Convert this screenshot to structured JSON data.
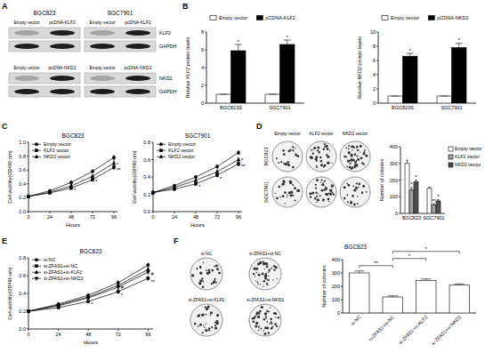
{
  "chart_data": [
    {
      "type": "bar",
      "y_label": "Relative KLF2 protein levels",
      "categories": [
        "BGC823S",
        "SGC7901"
      ],
      "series": [
        {
          "name": "Empty vector",
          "color": "#ffffff",
          "values": [
            1,
            1
          ],
          "errors": [
            0,
            0
          ]
        },
        {
          "name": "pCDNA-KLF2",
          "color": "#000000",
          "values": [
            5.9,
            6.6
          ],
          "errors": [
            0.7,
            0.5
          ]
        }
      ],
      "ylim": [
        0,
        8
      ],
      "yticks": [
        0,
        2,
        4,
        6,
        8
      ],
      "legend": "top",
      "annotations": [
        {
          "text": "*",
          "category": "BGC823S",
          "series": "pCDNA-KLF2"
        },
        {
          "text": "*",
          "category": "SGC7901",
          "series": "pCDNA-KLF2"
        }
      ]
    },
    {
      "type": "bar",
      "y_label": "Relative NKD2 protein levels",
      "categories": [
        "BGC823S",
        "SGC7901"
      ],
      "series": [
        {
          "name": "Empty vector",
          "color": "#ffffff",
          "values": [
            1,
            1
          ],
          "errors": [
            0,
            0
          ]
        },
        {
          "name": "pCDNA-NKD2",
          "color": "#000000",
          "values": [
            6.6,
            7.8
          ],
          "errors": [
            0.4,
            0.6
          ]
        }
      ],
      "ylim": [
        0,
        10
      ],
      "yticks": [
        0,
        2,
        4,
        6,
        8,
        10
      ],
      "legend": "top",
      "annotations": [
        {
          "text": "*",
          "category": "BGC823S",
          "series": "pCDNA-NKD2"
        },
        {
          "text": "*",
          "category": "SGC7901",
          "series": "pCDNA-NKD2"
        }
      ]
    },
    {
      "type": "line",
      "title": "BGC823",
      "x_label": "Hours",
      "y_label": "Cell viability(OD490 nm)",
      "x": [
        0,
        24,
        48,
        72,
        96
      ],
      "xlim": [
        0,
        100
      ],
      "xticks": [
        0,
        24,
        48,
        72,
        96
      ],
      "ylim": [
        0,
        1
      ],
      "yticks": [
        {
          "value": 0,
          "label": "0.0"
        },
        0.2,
        0.4,
        0.6,
        0.8,
        {
          "value": 1,
          "label": "1.0"
        }
      ],
      "legend": "top-left",
      "series": [
        {
          "name": "Empty vector",
          "color": "#000000",
          "marker": "circle",
          "values": [
            0.22,
            0.3,
            0.42,
            0.58,
            0.78
          ],
          "errors": [
            0.01,
            0.015,
            0.02,
            0.02,
            0.03
          ]
        },
        {
          "name": "KLF2 vector",
          "color": "#000000",
          "marker": "square",
          "values": [
            0.22,
            0.27,
            0.34,
            0.46,
            0.64
          ],
          "errors": [
            0.01,
            0.01,
            0.02,
            0.02,
            0.03
          ]
        },
        {
          "name": "NKD2 vector",
          "color": "#000000",
          "marker": "triangle",
          "values": [
            0.22,
            0.28,
            0.37,
            0.51,
            0.7
          ],
          "errors": [
            0.01,
            0.01,
            0.02,
            0.02,
            0.03
          ]
        }
      ],
      "annotations": [
        {
          "text": "*",
          "x": 48,
          "y": 0.31
        },
        {
          "text": "*",
          "x": 72,
          "y": 0.43
        },
        {
          "text": "**",
          "x": 96,
          "y": 0.6
        },
        {
          "text": "*",
          "x": 96,
          "y": 0.68
        }
      ]
    },
    {
      "type": "line",
      "title": "SGC7901",
      "x_label": "Hours",
      "y_label": "Cell viability(OD490 nm)",
      "x": [
        0,
        24,
        48,
        72,
        96
      ],
      "xlim": [
        0,
        100
      ],
      "xticks": [
        0,
        24,
        48,
        72,
        96
      ],
      "ylim": [
        0,
        0.8
      ],
      "yticks": [
        {
          "value": 0,
          "label": "0.0"
        },
        0.2,
        0.4,
        0.6,
        0.8
      ],
      "legend": "top-left",
      "series": [
        {
          "name": "Empty vector",
          "color": "#000000",
          "marker": "circle",
          "values": [
            0.22,
            0.3,
            0.4,
            0.52,
            0.68
          ],
          "errors": [
            0.01,
            0.01,
            0.015,
            0.02,
            0.02
          ]
        },
        {
          "name": "KLF2 vector",
          "color": "#000000",
          "marker": "square",
          "values": [
            0.22,
            0.26,
            0.32,
            0.42,
            0.55
          ],
          "errors": [
            0.01,
            0.01,
            0.015,
            0.02,
            0.02
          ]
        },
        {
          "name": "NKD2 vector",
          "color": "#000000",
          "marker": "triangle",
          "values": [
            0.22,
            0.28,
            0.36,
            0.46,
            0.6
          ],
          "errors": [
            0.01,
            0.01,
            0.015,
            0.02,
            0.02
          ]
        }
      ],
      "annotations": [
        {
          "text": "*",
          "x": 48,
          "y": 0.29
        },
        {
          "text": "*",
          "x": 72,
          "y": 0.38
        },
        {
          "text": "**",
          "x": 96,
          "y": 0.52
        },
        {
          "text": "*",
          "x": 96,
          "y": 0.6
        }
      ]
    },
    {
      "type": "bar",
      "y_label": "Number of colonies",
      "categories": [
        "BGC823",
        "SGC7901"
      ],
      "series": [
        {
          "name": "Empty vector",
          "color": "#ffffff",
          "values": [
            300,
            150
          ],
          "errors": [
            20,
            8
          ]
        },
        {
          "name": "KLF2 vector",
          "color": "#a0a0a0",
          "values": [
            140,
            50
          ],
          "errors": [
            15,
            8
          ]
        },
        {
          "name": "NKD2 vector",
          "color": "#505050",
          "values": [
            190,
            75
          ],
          "errors": [
            10,
            8
          ]
        }
      ],
      "ylim": [
        0,
        400
      ],
      "yticks": [
        0,
        100,
        200,
        300,
        400
      ],
      "legend": "right",
      "annotations": [
        {
          "text": "*",
          "category": "BGC823",
          "series": "KLF2 vector"
        },
        {
          "text": "*",
          "category": "BGC823",
          "series": "NKD2 vector"
        },
        {
          "text": "**",
          "category": "SGC7901",
          "series": "KLF2 vector"
        },
        {
          "text": "*",
          "category": "SGC7901",
          "series": "NKD2 vector"
        }
      ]
    },
    {
      "type": "line",
      "title": "BGC823",
      "x_label": "Hours",
      "y_label": "Cell viability(OD490 nm)",
      "x": [
        0,
        24,
        48,
        72,
        96
      ],
      "xlim": [
        0,
        100
      ],
      "xticks": [
        0,
        24,
        48,
        72,
        96
      ],
      "ylim": [
        0,
        0.8
      ],
      "yticks": [
        {
          "value": 0,
          "label": "0.0"
        },
        0.2,
        0.4,
        0.6,
        0.8
      ],
      "legend": "top-left",
      "series": [
        {
          "name": "si-NC",
          "color": "#000000",
          "marker": "circle",
          "values": [
            0.2,
            0.28,
            0.38,
            0.52,
            0.72
          ],
          "errors": [
            0.01,
            0.01,
            0.015,
            0.02,
            0.02
          ]
        },
        {
          "name": "si-ZFAS1+si-NC",
          "color": "#000000",
          "marker": "square",
          "values": [
            0.2,
            0.24,
            0.31,
            0.42,
            0.57
          ],
          "errors": [
            0.01,
            0.01,
            0.015,
            0.02,
            0.02
          ]
        },
        {
          "name": "si-ZFAS1+si-KLF2",
          "color": "#000000",
          "marker": "triangle",
          "values": [
            0.2,
            0.27,
            0.36,
            0.49,
            0.67
          ],
          "errors": [
            0.01,
            0.01,
            0.015,
            0.02,
            0.02
          ]
        },
        {
          "name": "si-ZFAS1+si-NKD2",
          "color": "#000000",
          "marker": "triangle-down",
          "values": [
            0.2,
            0.26,
            0.35,
            0.47,
            0.64
          ],
          "errors": [
            0.01,
            0.01,
            0.015,
            0.02,
            0.02
          ]
        }
      ],
      "annotations": [
        {
          "text": "*",
          "x": 48,
          "y": 0.28
        },
        {
          "text": "*",
          "x": 72,
          "y": 0.38
        },
        {
          "text": "#",
          "x": 72,
          "y": 0.47
        },
        {
          "text": "**",
          "x": 96,
          "y": 0.53
        },
        {
          "text": "#",
          "x": 96,
          "y": 0.62
        }
      ]
    },
    {
      "type": "bar",
      "title": "BGC823",
      "y_label": "Number of colonies",
      "categories": [
        "si-NC",
        "si-ZFAS1+si-NC",
        "si-ZFAS1+si-KLF2",
        "si-ZFAS1+si-NKD2"
      ],
      "series": [
        {
          "color": "#ffffff",
          "values": [
            300,
            120,
            245,
            210
          ],
          "errors": [
            15,
            8,
            10,
            8
          ]
        }
      ],
      "ylim": [
        0,
        400
      ],
      "yticks": [
        0,
        100,
        200,
        300,
        400
      ],
      "annotations": [
        {
          "text": "**",
          "from": "si-NC",
          "to": "si-ZFAS1+si-NC"
        },
        {
          "text": "*",
          "from": "si-ZFAS1+si-NC",
          "to": "si-ZFAS1+si-KLF2"
        },
        {
          "text": "*",
          "from": "si-ZFAS1+si-NC",
          "to": "si-ZFAS1+si-NKD2"
        }
      ]
    }
  ],
  "panel_labels": [
    "A",
    "B",
    "C",
    "D",
    "E",
    "F"
  ],
  "blots": [
    {
      "cells": [
        "BGC823",
        "SGC7901"
      ],
      "lanes": [
        "Empty vector",
        "pcDNA-KLF2"
      ],
      "proteins": [
        "KLF2",
        "GAPDH"
      ]
    },
    {
      "lanes": [
        "Empty vector",
        "pcDNA-NKD2"
      ],
      "proteins": [
        "NKD2",
        "GAPDH"
      ]
    }
  ],
  "colony_plates": [
    {
      "columns": [
        "Empty vector",
        "KLF2 vector",
        "NKD2 vector"
      ],
      "rows": [
        "BGC823",
        "SGC7901"
      ]
    },
    {
      "labels": [
        "si-NC",
        "si-ZFAS1+si-NC",
        "si-ZFAS1+si-KLF2",
        "si-ZFAS1+si-NKD2"
      ]
    }
  ]
}
